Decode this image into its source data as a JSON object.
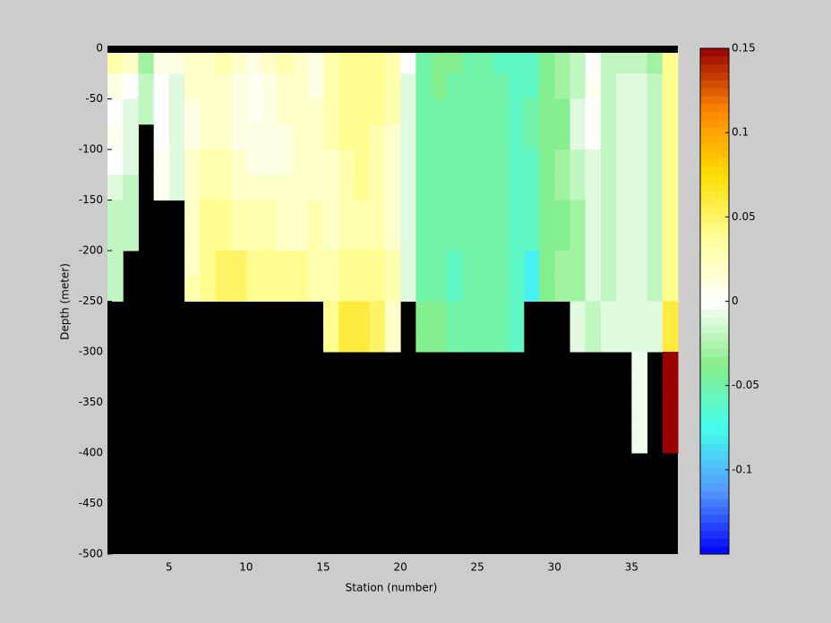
{
  "chart_data": {
    "type": "heatmap",
    "xlabel": "Station (number)",
    "ylabel": "Depth (meter)",
    "x_edges": [
      1,
      2,
      3,
      4,
      5,
      6,
      7,
      8,
      9,
      10,
      11,
      12,
      13,
      14,
      15,
      16,
      17,
      18,
      19,
      20,
      21,
      22,
      23,
      24,
      25,
      26,
      27,
      28,
      29,
      30,
      31,
      32,
      33,
      34,
      35,
      36,
      37,
      38
    ],
    "depth_edges": [
      0,
      -25,
      -50,
      -75,
      -100,
      -125,
      -150,
      -175,
      -200,
      -225,
      -250,
      -275,
      -300,
      -325,
      -350,
      -375,
      -400,
      -425,
      -450,
      -475,
      -500
    ],
    "values": [
      [
        0.03,
        0.01,
        0,
        0.005,
        0,
        -0.01,
        -0.02,
        -0.02,
        -0.02,
        -0.02,
        null,
        null,
        null,
        null,
        null,
        null,
        null,
        null,
        null,
        null
      ],
      [
        0.02,
        0,
        -0.01,
        -0.01,
        -0.01,
        -0.02,
        -0.02,
        -0.02,
        null,
        null,
        null,
        null,
        null,
        null,
        null,
        null,
        null,
        null,
        null,
        null
      ],
      [
        -0.03,
        -0.02,
        -0.02,
        null,
        null,
        null,
        null,
        null,
        null,
        null,
        null,
        null,
        null,
        null,
        null,
        null,
        null,
        null,
        null,
        null
      ],
      [
        0.01,
        0,
        0,
        0,
        0.005,
        0.005,
        null,
        null,
        null,
        null,
        null,
        null,
        null,
        null,
        null,
        null,
        null,
        null,
        null,
        null
      ],
      [
        0.01,
        -0.01,
        -0.01,
        -0.01,
        -0.01,
        -0.01,
        null,
        null,
        null,
        null,
        null,
        null,
        null,
        null,
        null,
        null,
        null,
        null,
        null,
        null
      ],
      [
        0.02,
        0.02,
        0.01,
        0.01,
        0.02,
        0.02,
        0.02,
        0.02,
        0.02,
        0.03,
        null,
        null,
        null,
        null,
        null,
        null,
        null,
        null,
        null,
        null
      ],
      [
        0.02,
        0.02,
        0.02,
        0.02,
        0.03,
        0.03,
        0.04,
        0.04,
        0.04,
        0.04,
        null,
        null,
        null,
        null,
        null,
        null,
        null,
        null,
        null,
        null
      ],
      [
        0.03,
        0.02,
        0.02,
        0.02,
        0.03,
        0.03,
        0.04,
        0.04,
        0.05,
        0.05,
        null,
        null,
        null,
        null,
        null,
        null,
        null,
        null,
        null,
        null
      ],
      [
        0.02,
        0.01,
        0.01,
        0.01,
        0.02,
        0.02,
        0.03,
        0.03,
        0.05,
        0.05,
        null,
        null,
        null,
        null,
        null,
        null,
        null,
        null,
        null,
        null
      ],
      [
        0.01,
        0.005,
        0.005,
        0.01,
        0.01,
        0.02,
        0.03,
        0.03,
        0.04,
        0.04,
        null,
        null,
        null,
        null,
        null,
        null,
        null,
        null,
        null,
        null
      ],
      [
        0.02,
        0.01,
        0.01,
        0.01,
        0.01,
        0.02,
        0.03,
        0.03,
        0.04,
        0.04,
        null,
        null,
        null,
        null,
        null,
        null,
        null,
        null,
        null,
        null
      ],
      [
        0.03,
        0.02,
        0.02,
        0.01,
        0.01,
        0.02,
        0.02,
        0.02,
        0.04,
        0.04,
        null,
        null,
        null,
        null,
        null,
        null,
        null,
        null,
        null,
        null
      ],
      [
        0.02,
        0.02,
        0.02,
        0.02,
        0.02,
        0.02,
        0.02,
        0.02,
        0.04,
        0.04,
        null,
        null,
        null,
        null,
        null,
        null,
        null,
        null,
        null,
        null
      ],
      [
        0.01,
        0.01,
        0.02,
        0.02,
        0.02,
        0.02,
        0.03,
        0.03,
        0.03,
        0.03,
        null,
        null,
        null,
        null,
        null,
        null,
        null,
        null,
        null,
        null
      ],
      [
        0.03,
        0.03,
        0.03,
        0.03,
        0.02,
        0.02,
        0.02,
        0.02,
        0.03,
        0.03,
        0.04,
        0.04,
        null,
        null,
        null,
        null,
        null,
        null,
        null,
        null
      ],
      [
        0.04,
        0.04,
        0.04,
        0.04,
        0.03,
        0.03,
        0.03,
        0.03,
        0.04,
        0.04,
        0.06,
        0.06,
        null,
        null,
        null,
        null,
        null,
        null,
        null,
        null
      ],
      [
        0.04,
        0.04,
        0.04,
        0.04,
        0.04,
        0.04,
        0.03,
        0.03,
        0.04,
        0.04,
        0.06,
        0.06,
        null,
        null,
        null,
        null,
        null,
        null,
        null,
        null
      ],
      [
        0.04,
        0.04,
        0.04,
        0.03,
        0.03,
        0.03,
        0.03,
        0.03,
        0.04,
        0.04,
        0.05,
        0.05,
        null,
        null,
        null,
        null,
        null,
        null,
        null,
        null
      ],
      [
        0.03,
        0.03,
        0.03,
        0.02,
        0.02,
        0.02,
        0.02,
        0.02,
        0.03,
        0.03,
        0.02,
        0.02,
        null,
        null,
        null,
        null,
        null,
        null,
        null,
        null
      ],
      [
        0,
        -0.01,
        -0.01,
        -0.01,
        -0.01,
        -0.01,
        -0.01,
        -0.01,
        -0.01,
        -0.01,
        null,
        null,
        null,
        null,
        null,
        null,
        null,
        null,
        null,
        null
      ],
      [
        -0.05,
        -0.05,
        -0.05,
        -0.05,
        -0.05,
        -0.05,
        -0.05,
        -0.05,
        -0.05,
        -0.05,
        -0.04,
        -0.04,
        null,
        null,
        null,
        null,
        null,
        null,
        null,
        null
      ],
      [
        -0.04,
        -0.04,
        -0.05,
        -0.05,
        -0.05,
        -0.05,
        -0.05,
        -0.05,
        -0.05,
        -0.05,
        -0.04,
        -0.04,
        null,
        null,
        null,
        null,
        null,
        null,
        null,
        null
      ],
      [
        -0.04,
        -0.05,
        -0.05,
        -0.05,
        -0.05,
        -0.05,
        -0.05,
        -0.05,
        -0.06,
        -0.06,
        -0.05,
        -0.05,
        null,
        null,
        null,
        null,
        null,
        null,
        null,
        null
      ],
      [
        -0.05,
        -0.05,
        -0.05,
        -0.05,
        -0.05,
        -0.05,
        -0.05,
        -0.05,
        -0.05,
        -0.05,
        -0.05,
        -0.05,
        null,
        null,
        null,
        null,
        null,
        null,
        null,
        null
      ],
      [
        -0.05,
        -0.05,
        -0.05,
        -0.05,
        -0.05,
        -0.05,
        -0.05,
        -0.05,
        -0.05,
        -0.05,
        -0.05,
        -0.05,
        null,
        null,
        null,
        null,
        null,
        null,
        null,
        null
      ],
      [
        -0.06,
        -0.05,
        -0.05,
        -0.05,
        -0.05,
        -0.05,
        -0.05,
        -0.05,
        -0.05,
        -0.05,
        -0.05,
        -0.05,
        null,
        null,
        null,
        null,
        null,
        null,
        null,
        null
      ],
      [
        -0.06,
        -0.06,
        -0.06,
        -0.06,
        -0.06,
        -0.06,
        -0.06,
        -0.06,
        -0.06,
        -0.06,
        -0.06,
        -0.06,
        null,
        null,
        null,
        null,
        null,
        null,
        null,
        null
      ],
      [
        -0.06,
        -0.06,
        -0.05,
        -0.05,
        -0.06,
        -0.06,
        -0.06,
        -0.06,
        -0.08,
        -0.08,
        null,
        null,
        null,
        null,
        null,
        null,
        null,
        null,
        null,
        null
      ],
      [
        -0.04,
        -0.04,
        -0.04,
        -0.04,
        -0.04,
        -0.04,
        -0.04,
        -0.04,
        -0.04,
        -0.04,
        null,
        null,
        null,
        null,
        null,
        null,
        null,
        null,
        null,
        null
      ],
      [
        -0.03,
        -0.03,
        -0.04,
        -0.04,
        -0.03,
        -0.03,
        -0.04,
        -0.04,
        -0.03,
        -0.03,
        null,
        null,
        null,
        null,
        null,
        null,
        null,
        null,
        null,
        null
      ],
      [
        -0.02,
        -0.02,
        -0.01,
        -0.01,
        -0.02,
        -0.02,
        -0.03,
        -0.03,
        -0.03,
        -0.03,
        -0.01,
        -0.01,
        null,
        null,
        null,
        null,
        null,
        null,
        null,
        null
      ],
      [
        0,
        0.005,
        0,
        0,
        -0.01,
        -0.01,
        -0.01,
        -0.01,
        -0.01,
        -0.01,
        -0.02,
        -0.02,
        null,
        null,
        null,
        null,
        null,
        null,
        null,
        null
      ],
      [
        -0.02,
        -0.02,
        -0.02,
        -0.02,
        -0.02,
        -0.02,
        -0.02,
        -0.02,
        -0.02,
        -0.02,
        -0.01,
        -0.01,
        null,
        null,
        null,
        null,
        null,
        null,
        null,
        null
      ],
      [
        -0.02,
        -0.01,
        -0.01,
        -0.01,
        -0.01,
        -0.01,
        -0.01,
        -0.01,
        -0.01,
        -0.01,
        -0.01,
        -0.01,
        null,
        null,
        null,
        null,
        null,
        null,
        null,
        null
      ],
      [
        -0.02,
        -0.01,
        -0.01,
        -0.01,
        -0.01,
        -0.01,
        -0.01,
        -0.01,
        -0.01,
        -0.01,
        -0.01,
        -0.01,
        -0.005,
        -0.005,
        -0.005,
        -0.005,
        null,
        null,
        null,
        null
      ],
      [
        -0.03,
        -0.02,
        -0.02,
        -0.02,
        -0.02,
        -0.02,
        -0.02,
        -0.02,
        -0.02,
        -0.02,
        -0.01,
        -0.01,
        null,
        null,
        null,
        null,
        null,
        null,
        null,
        null
      ],
      [
        0.04,
        0.04,
        0.04,
        0.04,
        0.04,
        0.04,
        0.04,
        0.04,
        0.04,
        0.04,
        0.06,
        0.06,
        0.15,
        0.15,
        0.15,
        0.15,
        null,
        null,
        null,
        null
      ]
    ],
    "xlim": [
      1,
      38
    ],
    "xticks": [
      5,
      10,
      15,
      20,
      25,
      30,
      35
    ],
    "ylim": [
      -500,
      0
    ],
    "yticks": [
      0,
      -50,
      -100,
      -150,
      -200,
      -250,
      -300,
      -350,
      -400,
      -450,
      -500
    ],
    "clim": [
      -0.15,
      0.15
    ],
    "cticks": [
      0.15,
      0.1,
      0.05,
      0,
      -0.05,
      -0.1
    ],
    "colormap": [
      "#0000ff",
      "#5599ff",
      "#44ffee",
      "#88ee88",
      "#ffffff",
      "#ffff99",
      "#ffdd00",
      "#ff8800",
      "#990000"
    ],
    "missing_color": "#000000"
  }
}
